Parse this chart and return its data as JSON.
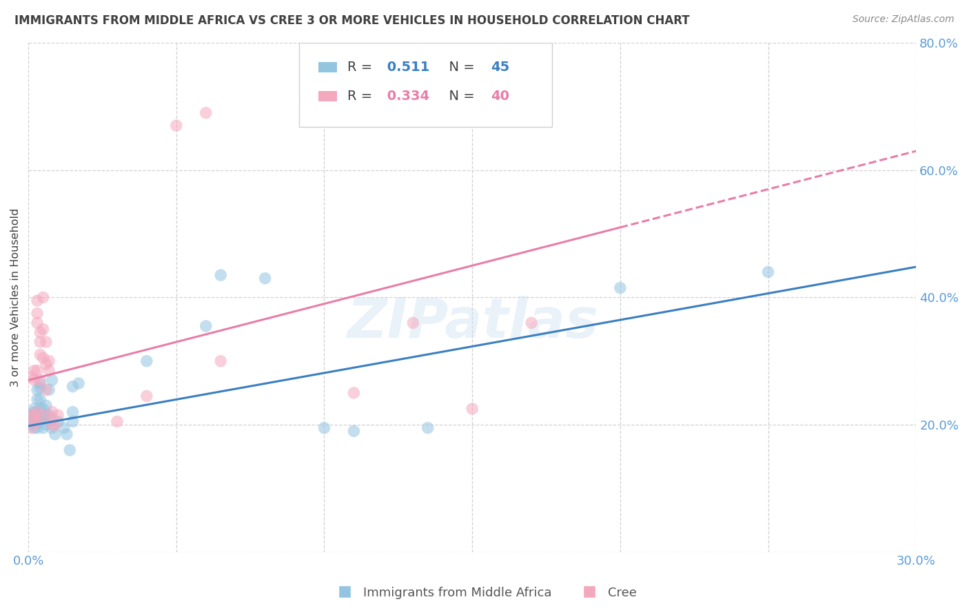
{
  "title": "IMMIGRANTS FROM MIDDLE AFRICA VS CREE 3 OR MORE VEHICLES IN HOUSEHOLD CORRELATION CHART",
  "source": "Source: ZipAtlas.com",
  "ylabel": "3 or more Vehicles in Household",
  "xlim": [
    0.0,
    0.3
  ],
  "ylim": [
    0.0,
    0.8
  ],
  "xticks": [
    0.0,
    0.05,
    0.1,
    0.15,
    0.2,
    0.25,
    0.3
  ],
  "x_labels_show": [
    0.0,
    0.3
  ],
  "yticks": [
    0.0,
    0.2,
    0.4,
    0.6,
    0.8
  ],
  "blue_R": "0.511",
  "blue_N": "45",
  "pink_R": "0.334",
  "pink_N": "40",
  "blue_label": "Immigrants from Middle Africa",
  "pink_label": "Cree",
  "blue_color": "#93c4e0",
  "pink_color": "#f4a8be",
  "blue_line_color": "#3a7fc1",
  "pink_line_color": "#e87da8",
  "background_color": "#ffffff",
  "grid_color": "#d0d0d0",
  "title_color": "#404040",
  "axis_tick_color": "#5b9bd5",
  "blue_scatter": [
    [
      0.001,
      0.2
    ],
    [
      0.001,
      0.205
    ],
    [
      0.001,
      0.215
    ],
    [
      0.002,
      0.195
    ],
    [
      0.002,
      0.21
    ],
    [
      0.002,
      0.22
    ],
    [
      0.002,
      0.225
    ],
    [
      0.003,
      0.195
    ],
    [
      0.003,
      0.21
    ],
    [
      0.003,
      0.22
    ],
    [
      0.003,
      0.24
    ],
    [
      0.003,
      0.255
    ],
    [
      0.004,
      0.205
    ],
    [
      0.004,
      0.225
    ],
    [
      0.004,
      0.24
    ],
    [
      0.004,
      0.258
    ],
    [
      0.004,
      0.265
    ],
    [
      0.005,
      0.195
    ],
    [
      0.005,
      0.215
    ],
    [
      0.005,
      0.225
    ],
    [
      0.006,
      0.2
    ],
    [
      0.006,
      0.215
    ],
    [
      0.006,
      0.23
    ],
    [
      0.007,
      0.215
    ],
    [
      0.007,
      0.255
    ],
    [
      0.008,
      0.195
    ],
    [
      0.008,
      0.27
    ],
    [
      0.009,
      0.185
    ],
    [
      0.01,
      0.205
    ],
    [
      0.012,
      0.195
    ],
    [
      0.013,
      0.185
    ],
    [
      0.014,
      0.16
    ],
    [
      0.015,
      0.205
    ],
    [
      0.015,
      0.22
    ],
    [
      0.015,
      0.26
    ],
    [
      0.017,
      0.265
    ],
    [
      0.04,
      0.3
    ],
    [
      0.06,
      0.355
    ],
    [
      0.065,
      0.435
    ],
    [
      0.08,
      0.43
    ],
    [
      0.1,
      0.195
    ],
    [
      0.11,
      0.19
    ],
    [
      0.135,
      0.195
    ],
    [
      0.2,
      0.415
    ],
    [
      0.25,
      0.44
    ]
  ],
  "pink_scatter": [
    [
      0.001,
      0.195
    ],
    [
      0.001,
      0.215
    ],
    [
      0.001,
      0.275
    ],
    [
      0.002,
      0.205
    ],
    [
      0.002,
      0.215
    ],
    [
      0.002,
      0.27
    ],
    [
      0.002,
      0.285
    ],
    [
      0.003,
      0.205
    ],
    [
      0.003,
      0.22
    ],
    [
      0.003,
      0.285
    ],
    [
      0.003,
      0.36
    ],
    [
      0.003,
      0.375
    ],
    [
      0.003,
      0.395
    ],
    [
      0.004,
      0.27
    ],
    [
      0.004,
      0.31
    ],
    [
      0.004,
      0.33
    ],
    [
      0.004,
      0.345
    ],
    [
      0.005,
      0.215
    ],
    [
      0.005,
      0.305
    ],
    [
      0.005,
      0.35
    ],
    [
      0.005,
      0.4
    ],
    [
      0.006,
      0.255
    ],
    [
      0.006,
      0.295
    ],
    [
      0.006,
      0.33
    ],
    [
      0.007,
      0.285
    ],
    [
      0.007,
      0.3
    ],
    [
      0.008,
      0.2
    ],
    [
      0.008,
      0.21
    ],
    [
      0.008,
      0.22
    ],
    [
      0.009,
      0.2
    ],
    [
      0.01,
      0.215
    ],
    [
      0.03,
      0.205
    ],
    [
      0.04,
      0.245
    ],
    [
      0.05,
      0.67
    ],
    [
      0.06,
      0.69
    ],
    [
      0.065,
      0.3
    ],
    [
      0.11,
      0.25
    ],
    [
      0.13,
      0.36
    ],
    [
      0.15,
      0.225
    ],
    [
      0.17,
      0.36
    ]
  ],
  "blue_line": [
    [
      0.0,
      0.198
    ],
    [
      0.3,
      0.448
    ]
  ],
  "pink_line_solid": [
    [
      0.0,
      0.27
    ],
    [
      0.2,
      0.51
    ]
  ],
  "pink_line_dash": [
    [
      0.2,
      0.51
    ],
    [
      0.3,
      0.63
    ]
  ],
  "watermark": "ZIPatlas",
  "figsize": [
    14.06,
    8.92
  ],
  "dpi": 100
}
